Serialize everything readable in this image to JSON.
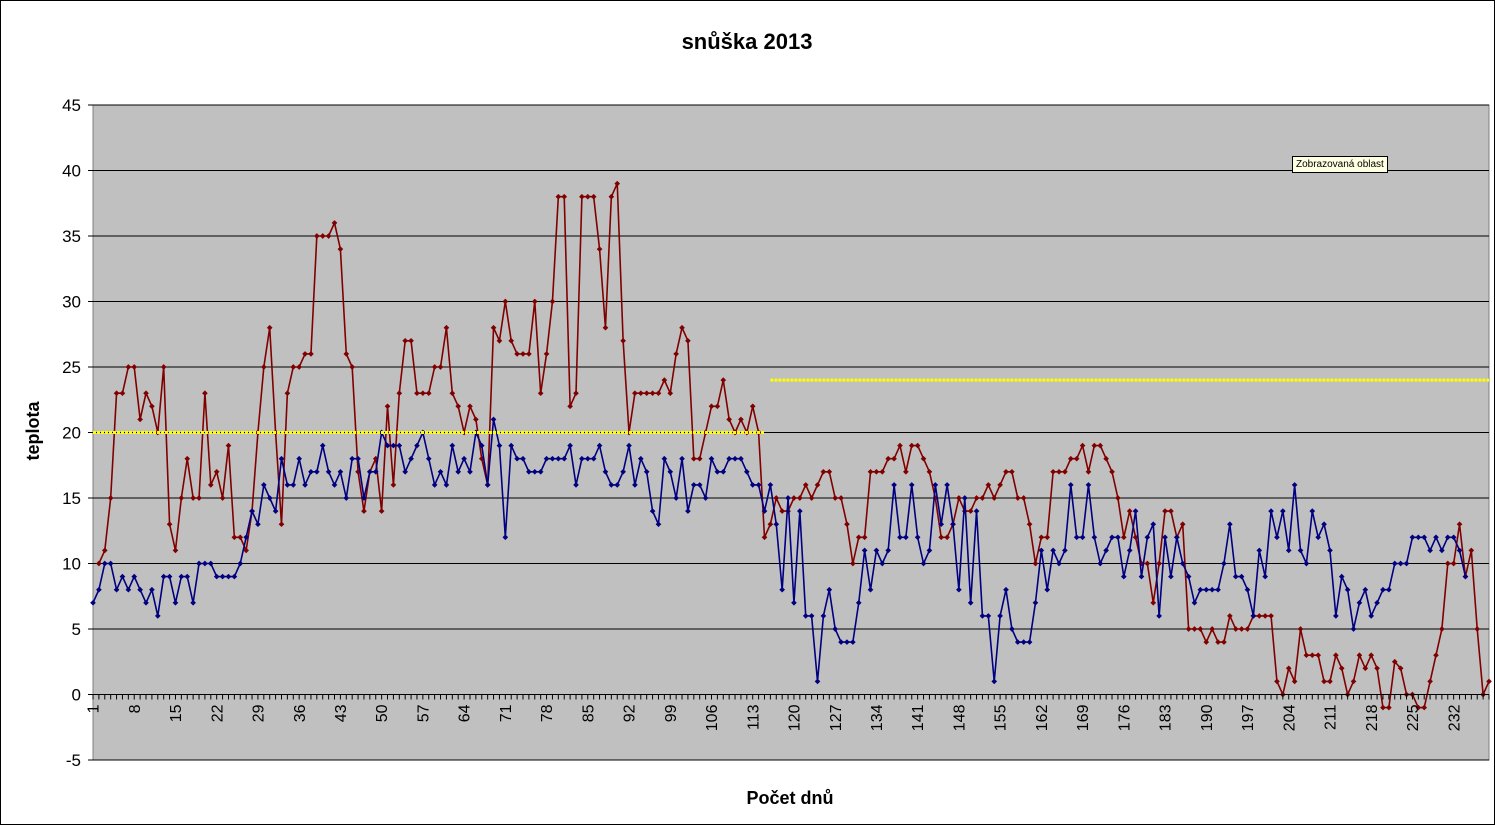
{
  "chart_data": {
    "type": "line",
    "title": "snůška 2013",
    "xlabel": "Počet dnů",
    "ylabel": "teplota",
    "ylim": [
      -5,
      45
    ],
    "yticks": [
      -5,
      0,
      5,
      10,
      15,
      20,
      25,
      30,
      35,
      40,
      45
    ],
    "xlim": [
      1,
      238
    ],
    "xticks": [
      1,
      8,
      15,
      22,
      29,
      36,
      43,
      50,
      57,
      64,
      71,
      78,
      85,
      92,
      99,
      106,
      113,
      120,
      127,
      134,
      141,
      148,
      155,
      162,
      169,
      176,
      183,
      190,
      197,
      204,
      211,
      218,
      225,
      232
    ],
    "grid": true,
    "legend": "none",
    "plot_background": "#c0c0c0",
    "series": [
      {
        "color": "#800000",
        "x_start": 2,
        "values": [
          10,
          11,
          15,
          23,
          23,
          25,
          25,
          21,
          23,
          22,
          20,
          25,
          13,
          11,
          15,
          18,
          15,
          15,
          23,
          16,
          17,
          15,
          19,
          12,
          12,
          11,
          14,
          20,
          25,
          28,
          20,
          13,
          23,
          25,
          25,
          26,
          26,
          35,
          35,
          35,
          36,
          34,
          26,
          25,
          17,
          14,
          17,
          18,
          14,
          22,
          16,
          23,
          27,
          27,
          23,
          23,
          23,
          25,
          25,
          28,
          23,
          22,
          20,
          22,
          21,
          18,
          16,
          28,
          27,
          30,
          27,
          26,
          26,
          26,
          30,
          23,
          26,
          30,
          38,
          38,
          22,
          23,
          38,
          38,
          38,
          34,
          28,
          38,
          39,
          27,
          20,
          23,
          23,
          23,
          23,
          23,
          24,
          23,
          26,
          28,
          27,
          18,
          18,
          20,
          22,
          22,
          24,
          21,
          20,
          21,
          20,
          22,
          20,
          12,
          13,
          15,
          14,
          14,
          15,
          15,
          16,
          15,
          16,
          17,
          17,
          15,
          15,
          13,
          10,
          12,
          12,
          17,
          17,
          17,
          18,
          18,
          19,
          17,
          19,
          19,
          18,
          17,
          15,
          12,
          12,
          13,
          15,
          14,
          14,
          15,
          15,
          16,
          15,
          16,
          17,
          17,
          15,
          15,
          13,
          10,
          12,
          12,
          17,
          17,
          17,
          18,
          18,
          19,
          17,
          19,
          19,
          18,
          17,
          15,
          12,
          14,
          12,
          10,
          10,
          7,
          10,
          14,
          14,
          12,
          13,
          5,
          5,
          5,
          4,
          5,
          4,
          4,
          6,
          5,
          5,
          5,
          6,
          6,
          6,
          6,
          1,
          0,
          2,
          1,
          5,
          3,
          3,
          3,
          1,
          1,
          3,
          2,
          0,
          1,
          3,
          2,
          3,
          2,
          -1,
          -1,
          2.5,
          2,
          0,
          0,
          -1,
          -1,
          1,
          3,
          5,
          10,
          10,
          13,
          9,
          11,
          5,
          0,
          1
        ]
      },
      {
        "color": "#000080",
        "x_start": 1,
        "values": [
          7,
          8,
          10,
          10,
          8,
          9,
          8,
          9,
          8,
          7,
          8,
          6,
          9,
          9,
          7,
          9,
          9,
          7,
          10,
          10,
          10,
          9,
          9,
          9,
          9,
          10,
          12,
          14,
          13,
          16,
          15,
          14,
          18,
          16,
          16,
          18,
          16,
          17,
          17,
          19,
          17,
          16,
          17,
          15,
          18,
          18,
          15,
          17,
          17,
          20,
          19,
          19,
          19,
          17,
          18,
          19,
          20,
          18,
          16,
          17,
          16,
          19,
          17,
          18,
          17,
          20,
          19,
          16,
          21,
          19,
          12,
          19,
          18,
          18,
          17,
          17,
          17,
          18,
          18,
          18,
          18,
          19,
          16,
          18,
          18,
          18,
          19,
          17,
          16,
          16,
          17,
          19,
          16,
          18,
          17,
          14,
          13,
          18,
          17,
          15,
          18,
          14,
          16,
          16,
          15,
          18,
          17,
          17,
          18,
          18,
          18,
          17,
          16,
          16,
          14,
          16,
          13,
          8,
          15,
          7,
          14,
          6,
          6,
          1,
          6,
          8,
          5,
          4,
          4,
          4,
          7,
          11,
          8,
          11,
          10,
          11,
          16,
          12,
          12,
          16,
          12,
          10,
          11,
          16,
          13,
          16,
          13,
          8,
          15,
          7,
          14,
          6,
          6,
          1,
          6,
          8,
          5,
          4,
          4,
          4,
          7,
          11,
          8,
          11,
          10,
          11,
          16,
          12,
          12,
          16,
          12,
          10,
          11,
          12,
          12,
          9,
          11,
          14,
          9,
          12,
          13,
          6,
          12,
          9,
          12,
          10,
          9,
          7,
          8,
          8,
          8,
          8,
          10,
          13,
          9,
          9,
          8,
          6,
          11,
          9,
          14,
          12,
          14,
          11,
          16,
          11,
          10,
          14,
          12,
          13,
          11,
          6,
          9,
          8,
          5,
          7,
          8,
          6,
          7,
          8,
          8,
          10,
          10,
          10,
          12,
          12,
          12,
          11,
          12,
          11,
          12,
          12,
          11,
          9
        ]
      },
      {
        "color": "#ffff00",
        "segments": [
          {
            "x": [
              1,
              115
            ],
            "y": 20
          },
          {
            "x": [
              116,
              238
            ],
            "y": 24
          }
        ]
      }
    ]
  },
  "tooltip": {
    "text": "Zobrazovaná oblast"
  }
}
